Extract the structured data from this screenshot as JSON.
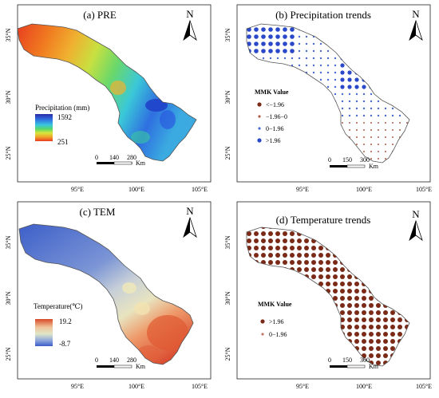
{
  "panels": [
    {
      "id": "a",
      "title": "(a) PRE",
      "north": "N",
      "lat_labels": [
        "35°N",
        "30°N",
        "25°N"
      ],
      "lon_labels": [
        "95°E",
        "100°E",
        "105°E"
      ],
      "legend": {
        "title": "Precipitation (mm)",
        "max": "1592",
        "min": "251"
      },
      "scalebar": {
        "ticks": [
          "0",
          "140",
          "280"
        ],
        "unit": "Km"
      },
      "colors": {
        "ramp": [
          "#2a2aa8",
          "#2f6fe0",
          "#39c6e0",
          "#5ad86a",
          "#d8e63a",
          "#f0a02a",
          "#e83a20"
        ]
      }
    },
    {
      "id": "b",
      "title": "(b) Precipitation trends",
      "north": "N",
      "lat_labels": [
        "35°N",
        "30°N",
        "25°N"
      ],
      "lon_labels": [
        "95°E",
        "100°E",
        "105°E"
      ],
      "legend": {
        "title": "MMK Value",
        "items": [
          {
            "label": "<−1.96",
            "color": "#7a2a16"
          },
          {
            "label": "−1.96−0",
            "color": "#b05a48"
          },
          {
            "label": "0−1.96",
            "color": "#4a6ad0"
          },
          {
            "label": ">1.96",
            "color": "#2a48c8"
          }
        ]
      },
      "scalebar": {
        "ticks": [
          "0",
          "150",
          "300"
        ],
        "unit": "Km"
      }
    },
    {
      "id": "c",
      "title": "(c) TEM",
      "north": "N",
      "lat_labels": [
        "35°N",
        "30°N",
        "25°N"
      ],
      "lon_labels": [
        "95°E",
        "100°E",
        "105°E"
      ],
      "legend": {
        "title": "Temperature(℃)",
        "max": "19.2",
        "min": "-8.7"
      },
      "scalebar": {
        "ticks": [
          "0",
          "140",
          "280"
        ],
        "unit": "Km"
      },
      "colors": {
        "ramp": [
          "#3a5cc8",
          "#8aa4dc",
          "#dfe6c8",
          "#f0c49a",
          "#e8693a",
          "#d84a2a"
        ]
      }
    },
    {
      "id": "d",
      "title": "(d) Temperature trends",
      "north": "N",
      "lat_labels": [
        "35°N",
        "30°N",
        "25°N"
      ],
      "lon_labels": [
        "95°E",
        "100°E",
        "105°E"
      ],
      "legend": {
        "title": "MMK Value",
        "items": [
          {
            "label": ">1.96",
            "color": "#7a2a16"
          },
          {
            "label": "0−1.96",
            "color": "#c07a68"
          }
        ]
      },
      "scalebar": {
        "ticks": [
          "0",
          "150",
          "300"
        ],
        "unit": "Km"
      }
    }
  ]
}
